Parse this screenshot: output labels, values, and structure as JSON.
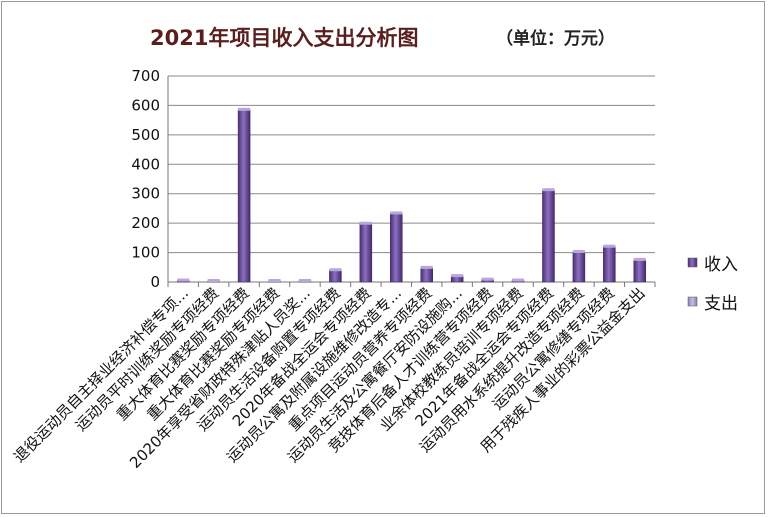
{
  "chart_data": {
    "type": "bar",
    "title": "2021年项目收入支出分析图",
    "unit": "（单位：万元）",
    "categories": [
      "退役运动员自主择业经济补偿专项...",
      "运动员平时训练奖励专项经费",
      "重大体育比赛奖励专项经费",
      "重大体育比赛奖励专项经费",
      "2020年享受省财政特殊津贴人员奖...",
      "运动员生活设备购置专项经费",
      "2020年备战全运会专项经费",
      "运动员公寓及附属设施维修改造专...",
      "重点项目运动员营养专项经费",
      "运动员生活及公寓餐厅安防设施购...",
      "竞技体育后备人才训练营专项经费",
      "业余体校教练员培训专项经费",
      "2021年备战全运会专项经费",
      "运动员用水系统提升改造专项经费",
      "运动员公寓修缮专项经费",
      "用于残疾人事业的彩票公益金支出"
    ],
    "series": [
      {
        "name": "收入",
        "values": [
          5,
          2,
          585,
          2,
          1,
          40,
          198,
          233,
          48,
          20,
          8,
          5,
          312,
          102,
          120,
          75
        ],
        "color": "#6b4e96"
      },
      {
        "name": "支出",
        "values": [
          0,
          0,
          0,
          0,
          0,
          0,
          0,
          0,
          0,
          0,
          0,
          0,
          0,
          0,
          0,
          0
        ],
        "color": "#a99ad0"
      }
    ],
    "ylim": [
      0,
      700
    ],
    "yticks": [
      0,
      100,
      200,
      300,
      400,
      500,
      600,
      700
    ],
    "grid": true,
    "legend": "right"
  }
}
